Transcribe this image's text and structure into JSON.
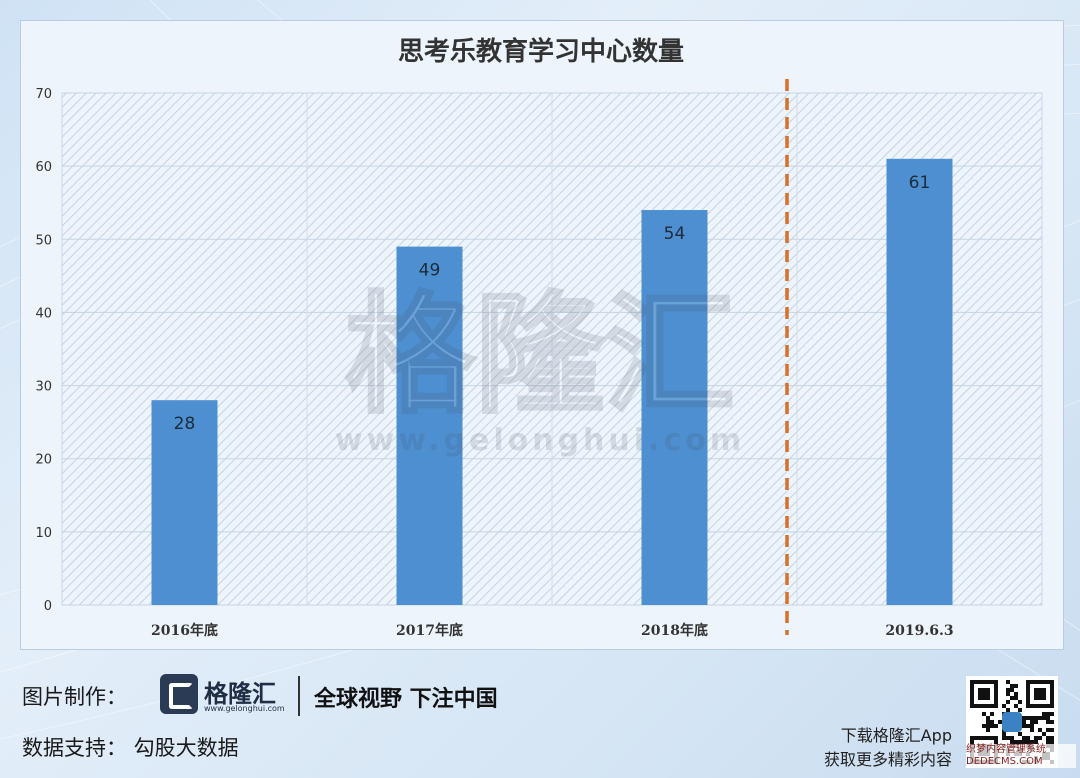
{
  "chart_data": {
    "type": "bar",
    "title": "思考乐教育学习中心数量",
    "categories": [
      "2016年底",
      "2017年底",
      "2018年底",
      "2019.6.3"
    ],
    "values": [
      28,
      49,
      54,
      61
    ],
    "ylim": [
      0,
      70
    ],
    "yticks": [
      0,
      10,
      20,
      30,
      40,
      50,
      60,
      70
    ],
    "xlabel": "",
    "ylabel": "",
    "grid": true,
    "legend": "none",
    "bar_color": "#4d8fd0",
    "divider_color": "#d9702a",
    "divider_after_category_index": 2,
    "watermark": {
      "name": "格隆汇",
      "url": "www.gelonghui.com"
    }
  },
  "footer": {
    "credit_label": "图片制作：",
    "data_label": "数据支持：  勾股大数据",
    "logo_name": "格隆汇",
    "logo_url": "www.gelonghui.com",
    "slogan": "全球视野 下注中国",
    "app_line1": "下载格隆汇App",
    "app_line2": "获取更多精彩内容",
    "qr_watermark_line1": "织梦内容管理系统",
    "qr_watermark_line2": "DEDECMS.COM"
  },
  "colors": {
    "bar": "#4d8fd0",
    "divider": "#d9702a",
    "logo": "#2b3a55"
  },
  "icons": {
    "logo": "gelonghui-logo-icon",
    "qr": "qr-code-icon"
  }
}
